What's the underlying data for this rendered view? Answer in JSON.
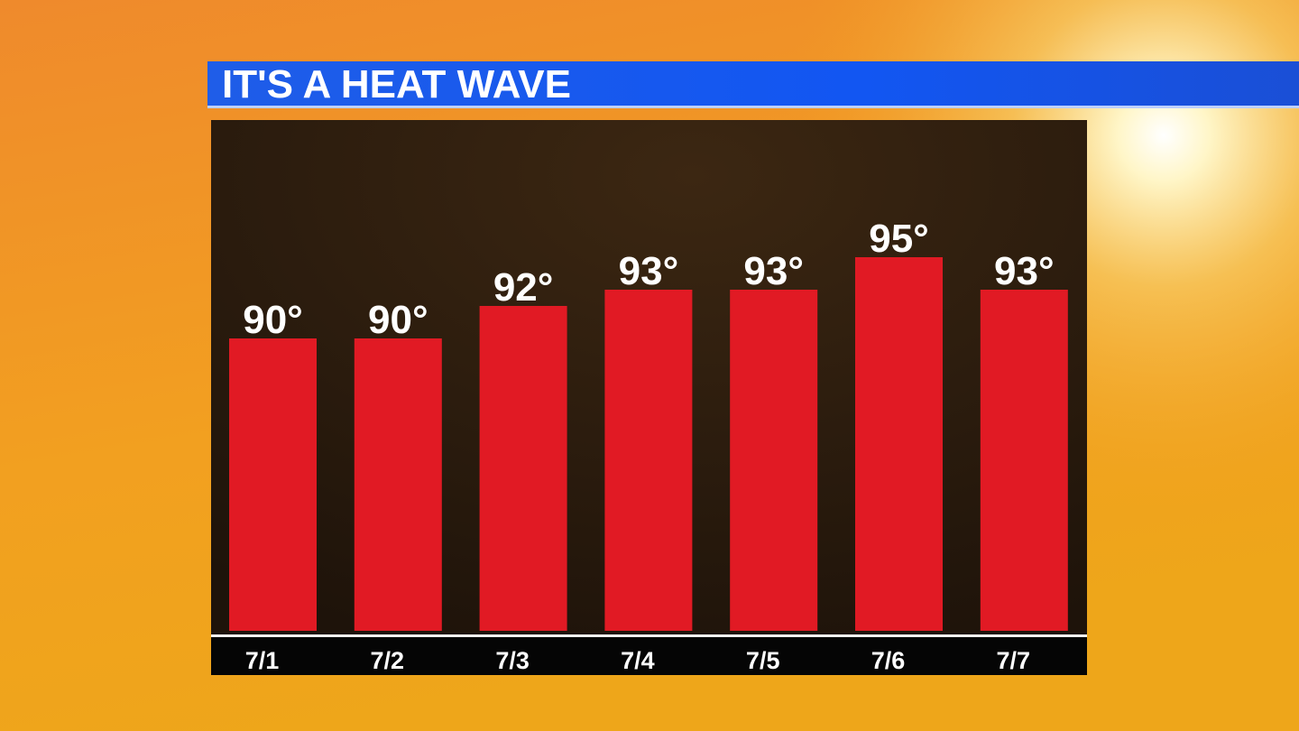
{
  "chart_data": {
    "type": "bar",
    "title": "IT'S A HEAT WAVE",
    "categories": [
      "7/1",
      "7/2",
      "7/3",
      "7/4",
      "7/5",
      "7/6",
      "7/7"
    ],
    "values": [
      90,
      90,
      92,
      93,
      93,
      95,
      93
    ],
    "value_labels": [
      "90°",
      "90°",
      "92°",
      "93°",
      "93°",
      "95°",
      "93°"
    ],
    "color": "#e11a24",
    "ylim": [
      72,
      100
    ]
  }
}
